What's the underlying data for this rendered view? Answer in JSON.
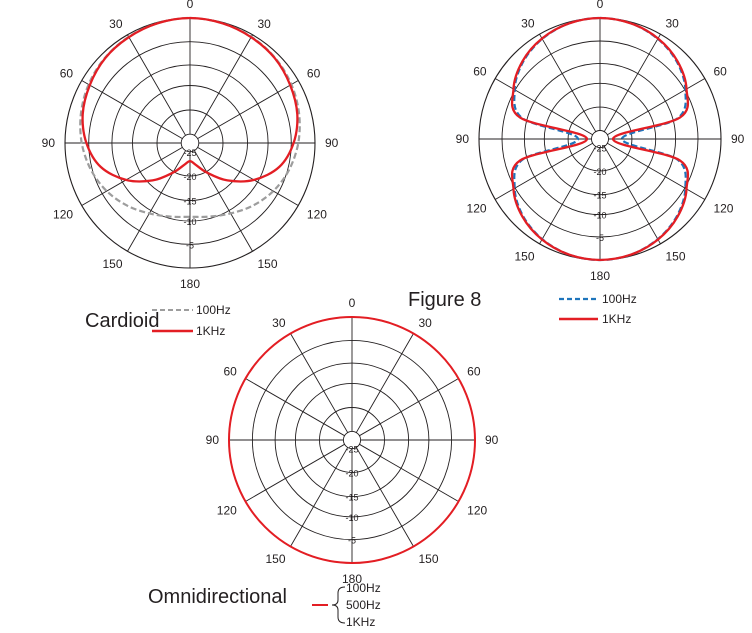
{
  "figure": {
    "angle_labels": [
      "0",
      "30",
      "60",
      "90",
      "120",
      "150",
      "180",
      "150",
      "120",
      "90",
      "60",
      "30"
    ],
    "ring_labels": [
      "-25",
      "-20",
      "-15",
      "-10",
      "-5"
    ]
  },
  "chart_data": [
    {
      "type": "polar",
      "title": "Cardioid",
      "angle_ticks_deg": [
        0,
        30,
        60,
        90,
        120,
        150,
        180,
        150,
        120,
        90,
        60,
        30
      ],
      "radial_ticks": [
        -25,
        -20,
        -15,
        -10,
        -5
      ],
      "rlim": [
        -25,
        0
      ],
      "legend_placement": "below",
      "theta_deg": [
        0,
        15,
        30,
        45,
        60,
        75,
        90,
        105,
        120,
        135,
        150,
        165,
        180
      ],
      "series": [
        {
          "name": "100Hz",
          "color": "#9d9d9d",
          "dash": "dashed",
          "r": [
            0.0,
            -0.2,
            -0.5,
            -1.0,
            -1.7,
            -2.6,
            -3.6,
            -4.8,
            -6.2,
            -7.8,
            -9.4,
            -10.5,
            -11.0
          ]
        },
        {
          "name": "1KHz",
          "color": "#e31e24",
          "dash": "solid",
          "r": [
            0.0,
            -0.2,
            -0.6,
            -1.1,
            -2.0,
            -3.0,
            -4.6,
            -7.0,
            -11.0,
            -15.5,
            -19.5,
            -22.0,
            -23.0
          ]
        }
      ]
    },
    {
      "type": "polar",
      "title": "Figure 8",
      "angle_ticks_deg": [
        0,
        30,
        60,
        90,
        120,
        150,
        180,
        150,
        120,
        90,
        60,
        30
      ],
      "radial_ticks": [
        -25,
        -20,
        -15,
        -10,
        -5
      ],
      "rlim": [
        -25,
        0
      ],
      "legend_placement": "right",
      "theta_deg": [
        0,
        15,
        30,
        45,
        60,
        75,
        90,
        105,
        120,
        135,
        150,
        165,
        180
      ],
      "series": [
        {
          "name": "100Hz",
          "color": "#1f75bc",
          "dash": "dashed",
          "r": [
            0.0,
            -0.3,
            -1.2,
            -2.7,
            -5.0,
            -9.0,
            -22.0,
            -9.0,
            -5.0,
            -2.7,
            -1.2,
            -0.3,
            0.0
          ]
        },
        {
          "name": "1KHz",
          "color": "#e31e24",
          "dash": "solid",
          "r": [
            0.0,
            -0.3,
            -1.1,
            -2.5,
            -4.7,
            -8.5,
            -24.0,
            -8.5,
            -4.7,
            -2.5,
            -1.1,
            -0.3,
            0.0
          ]
        }
      ]
    },
    {
      "type": "polar",
      "title": "Omnidirectional",
      "angle_ticks_deg": [
        0,
        30,
        60,
        90,
        120,
        150,
        180,
        150,
        120,
        90,
        60,
        30
      ],
      "radial_ticks": [
        -25,
        -20,
        -15,
        -10,
        -5
      ],
      "rlim": [
        -25,
        0
      ],
      "legend_placement": "right",
      "theta_deg": [
        0,
        90,
        180
      ],
      "series": [
        {
          "name": "100Hz",
          "color": "#e31e24",
          "dash": "solid",
          "r": [
            0,
            0,
            0
          ]
        },
        {
          "name": "500Hz",
          "color": "#e31e24",
          "dash": "solid",
          "r": [
            0,
            0,
            0
          ]
        },
        {
          "name": "1KHz",
          "color": "#e31e24",
          "dash": "solid",
          "r": [
            0,
            0,
            0
          ]
        }
      ]
    }
  ]
}
